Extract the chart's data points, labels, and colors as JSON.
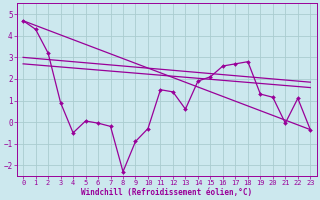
{
  "xlabel": "Windchill (Refroidissement éolien,°C)",
  "background_color": "#cce8ee",
  "line_color": "#990099",
  "grid_color": "#aaccd0",
  "xlim": [
    -0.5,
    23.5
  ],
  "ylim": [
    -2.5,
    5.5
  ],
  "yticks": [
    -2,
    -1,
    0,
    1,
    2,
    3,
    4,
    5
  ],
  "xticks": [
    0,
    1,
    2,
    3,
    4,
    5,
    6,
    7,
    8,
    9,
    10,
    11,
    12,
    13,
    14,
    15,
    16,
    17,
    18,
    19,
    20,
    21,
    22,
    23
  ],
  "series1_x": [
    0,
    1,
    2,
    3,
    4,
    5,
    6,
    7,
    8,
    9,
    10,
    11,
    12,
    13,
    14,
    15,
    16,
    17,
    18,
    19,
    20,
    21,
    22,
    23
  ],
  "series1_y": [
    4.7,
    4.3,
    3.2,
    0.9,
    -0.5,
    0.05,
    -0.05,
    -0.2,
    -2.3,
    -0.9,
    -0.3,
    1.5,
    1.4,
    0.6,
    1.9,
    2.1,
    2.6,
    2.7,
    2.8,
    1.3,
    1.15,
    -0.05,
    1.1,
    -0.35
  ],
  "series2_x": [
    0,
    23
  ],
  "series2_y": [
    4.7,
    -0.35
  ],
  "series3_x": [
    0,
    23
  ],
  "series3_y": [
    3.0,
    1.85
  ],
  "series4_x": [
    0,
    23
  ],
  "series4_y": [
    2.7,
    1.6
  ]
}
